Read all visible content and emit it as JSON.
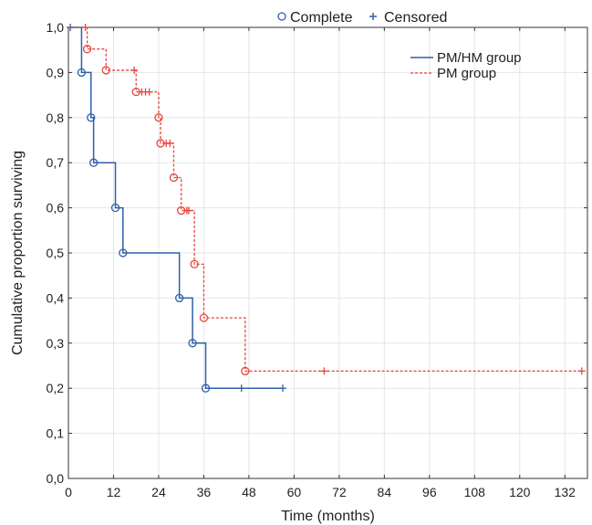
{
  "chart_data": {
    "type": "line",
    "subtype": "kaplan-meier step",
    "xlabel": "Time (months)",
    "ylabel": "Cumulative proportion surviving",
    "xlim": [
      0,
      138
    ],
    "ylim": [
      0,
      1
    ],
    "xticks": [
      0,
      12,
      24,
      36,
      48,
      60,
      72,
      84,
      96,
      108,
      120,
      132
    ],
    "yticks": [
      "0,0",
      "0,1",
      "0,2",
      "0,3",
      "0,4",
      "0,5",
      "0,6",
      "0,7",
      "0,8",
      "0,9",
      "1,0"
    ],
    "grid": true,
    "marker_legend": [
      {
        "symbol": "o",
        "label": "Complete",
        "color": "#2f5fa8"
      },
      {
        "symbol": "+",
        "label": "Censored",
        "color": "#2f5fa8"
      }
    ],
    "legend_position": "top-right",
    "series": [
      {
        "name": "PM/HM group",
        "color": "#2f5fa8",
        "dash": "solid",
        "steps": [
          [
            0,
            1.0
          ],
          [
            3.5,
            0.9
          ],
          [
            6,
            0.8
          ],
          [
            6.7,
            0.7
          ],
          [
            12.5,
            0.6
          ],
          [
            14.5,
            0.5
          ],
          [
            29.5,
            0.4
          ],
          [
            33,
            0.3
          ],
          [
            36.5,
            0.2
          ]
        ],
        "end_x": 57,
        "events": [
          [
            3.5,
            0.9
          ],
          [
            6,
            0.8
          ],
          [
            6.7,
            0.7
          ],
          [
            12.5,
            0.6
          ],
          [
            14.5,
            0.5
          ],
          [
            29.5,
            0.4
          ],
          [
            33,
            0.3
          ],
          [
            36.5,
            0.2
          ]
        ],
        "censored": [
          [
            0.5,
            1.0
          ],
          [
            46,
            0.2
          ],
          [
            57,
            0.2
          ]
        ]
      },
      {
        "name": "PM group",
        "color": "#e8453c",
        "dash": "dashed",
        "steps": [
          [
            0,
            1.0
          ],
          [
            5,
            0.952
          ],
          [
            10,
            0.905
          ],
          [
            18,
            0.857
          ],
          [
            24,
            0.8
          ],
          [
            24.5,
            0.743
          ],
          [
            28,
            0.667
          ],
          [
            30,
            0.594
          ],
          [
            33.5,
            0.475
          ],
          [
            36,
            0.356
          ],
          [
            47,
            0.238
          ]
        ],
        "end_x": 136.5,
        "events": [
          [
            5,
            0.952
          ],
          [
            10,
            0.905
          ],
          [
            18,
            0.857
          ],
          [
            24,
            0.8
          ],
          [
            24.5,
            0.743
          ],
          [
            28,
            0.667
          ],
          [
            30,
            0.594
          ],
          [
            33.5,
            0.475
          ],
          [
            36,
            0.356
          ],
          [
            47,
            0.238
          ]
        ],
        "censored": [
          [
            4.5,
            1.0
          ],
          [
            17.5,
            0.905
          ],
          [
            19.5,
            0.857
          ],
          [
            20.5,
            0.857
          ],
          [
            21.5,
            0.857
          ],
          [
            26,
            0.743
          ],
          [
            27,
            0.743
          ],
          [
            31.5,
            0.594
          ],
          [
            32,
            0.594
          ],
          [
            68,
            0.238
          ],
          [
            136.5,
            0.238
          ]
        ]
      }
    ]
  }
}
